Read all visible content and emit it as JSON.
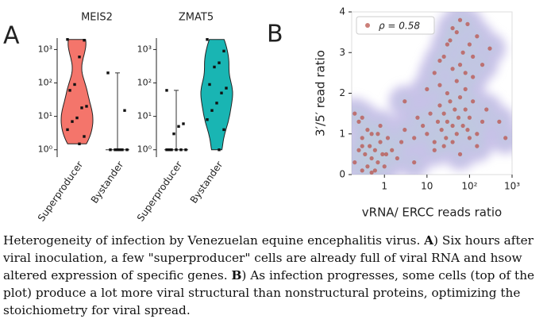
{
  "panel_labels": [
    "A",
    "B"
  ],
  "chart_data": [
    {
      "type": "violin",
      "title": "MEIS2",
      "categories": [
        "Superproducer",
        "Bystander"
      ],
      "log_y": true,
      "ylim": [
        0.75,
        2200
      ],
      "yticks": [
        {
          "value": 1,
          "label": "10⁰"
        },
        {
          "value": 10,
          "label": "10¹"
        },
        {
          "value": 100,
          "label": "10²"
        },
        {
          "value": 1000,
          "label": "10³"
        }
      ],
      "groups": [
        {
          "color": "#f4756b",
          "values": [
            2000,
            1900,
            600,
            90,
            60,
            20,
            18,
            9,
            7,
            4,
            2.5,
            1.5
          ]
        },
        {
          "values": [
            200,
            15,
            1,
            1,
            1,
            1,
            1,
            1
          ]
        }
      ]
    },
    {
      "type": "violin",
      "title": "ZMAT5",
      "categories": [
        "Superproducer",
        "Bystander"
      ],
      "log_y": true,
      "ylim": [
        0.75,
        2200
      ],
      "yticks": [
        {
          "value": 1,
          "label": "10⁰"
        },
        {
          "value": 10,
          "label": "10¹"
        },
        {
          "value": 100,
          "label": "10²"
        },
        {
          "value": 1000,
          "label": "10³"
        }
      ],
      "groups": [
        {
          "values": [
            60,
            6,
            5,
            3,
            1,
            1,
            1,
            1,
            1,
            1
          ]
        },
        {
          "color": "#19b5b3",
          "values": [
            2000,
            900,
            400,
            300,
            90,
            70,
            50,
            25,
            15,
            8,
            4,
            1
          ]
        }
      ]
    },
    {
      "type": "scatter",
      "x_label": "vRNA/ ERCC reads ratio",
      "y_label": "3′/5′ read ratio",
      "log_x": true,
      "xlim": [
        0.17,
        1000
      ],
      "ylim": [
        0,
        4
      ],
      "xticks": [
        1,
        10,
        {
          "value": 100,
          "label": "10²"
        },
        {
          "value": 1000,
          "label": "10³"
        }
      ],
      "yticks": [
        0,
        1,
        2,
        3,
        4
      ],
      "legend": "upper-left",
      "density_color": "#9b8fd6",
      "series": [
        {
          "name": "ρ = 0.58",
          "color": "#b9544c",
          "x": [
            0.2,
            0.25,
            0.3,
            0.3,
            0.35,
            0.4,
            0.45,
            0.5,
            0.5,
            0.6,
            0.7,
            0.8,
            0.9,
            1,
            1.2,
            1.5,
            2,
            2.5,
            3,
            0.25,
            0.4,
            0.6,
            0.8,
            1.1,
            0.3,
            0.5,
            0.7,
            5,
            6,
            8,
            10,
            12,
            15,
            18,
            20,
            22,
            25,
            28,
            30,
            35,
            40,
            45,
            50,
            55,
            60,
            70,
            80,
            90,
            100,
            120,
            150,
            200,
            250,
            10,
            15,
            20,
            25,
            30,
            40,
            50,
            60,
            80,
            100,
            120,
            150,
            20,
            30,
            40,
            50,
            70,
            90,
            120,
            150,
            200,
            300,
            15,
            25,
            35,
            60,
            80,
            100,
            40,
            60,
            3,
            5,
            500,
            700,
            0.2,
            0.3
          ],
          "y": [
            0.3,
            0.6,
            0.1,
            0.9,
            0.5,
            0.2,
            0.7,
            0.4,
            1.0,
            0.6,
            0.3,
            0.8,
            0.5,
            0.2,
            0.9,
            0.6,
            0.4,
            0.8,
            1.1,
            1.3,
            1.1,
            0.1,
            1.2,
            0.5,
            0.7,
            0.05,
            1.0,
            0.9,
            1.4,
            1.2,
            1.0,
            1.5,
            0.8,
            1.3,
            1.7,
            1.1,
            1.5,
            0.9,
            1.3,
            1.8,
            1.2,
            1.6,
            1.0,
            1.4,
            1.9,
            1.2,
            1.6,
            1.1,
            1.4,
            1.8,
            1.0,
            1.3,
            1.6,
            2.1,
            0.6,
            2.2,
            0.7,
            2.0,
            0.8,
            2.3,
            0.5,
            2.1,
            0.9,
            2.4,
            0.7,
            2.8,
            3.2,
            2.6,
            3.5,
            3.0,
            3.7,
            2.9,
            3.4,
            2.7,
            3.1,
            2.5,
            2.9,
            3.3,
            3.8,
            2.5,
            3.2,
            3.6,
            2.7,
            1.8,
            0.3,
            1.3,
            0.9,
            1.5,
            1.4
          ]
        }
      ]
    }
  ],
  "caption": [
    "Heterogeneity of infection by Venezuelan equine encephalitis virus. ",
    "A",
    ") Six hours after viral inoculation, a few \"superproducer\" cells are already full of viral RNA and hsow altered expression of specific genes. ",
    "B",
    ") As infection progresses, some cells (top of the plot) produce a lot more viral structural than nonstructural proteins, optimizing the stoichiometry for viral spread."
  ]
}
